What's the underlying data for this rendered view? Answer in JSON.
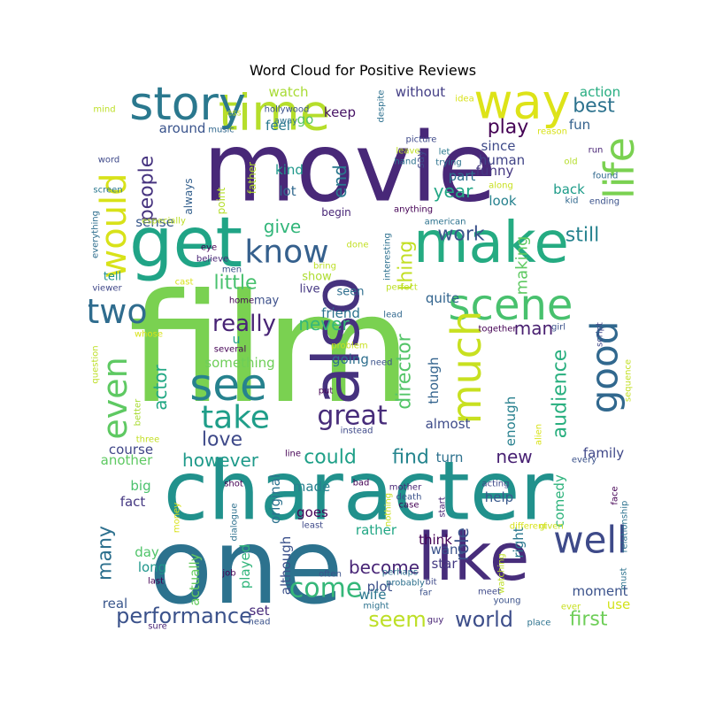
{
  "chart_data": {
    "type": "wordcloud",
    "title": "Word Cloud for Positive Reviews",
    "colormap": "viridis",
    "words": [
      {
        "text": "film",
        "weight": 100,
        "color": "#7ad151"
      },
      {
        "text": "movie",
        "weight": 88,
        "color": "#482878"
      },
      {
        "text": "one",
        "weight": 82,
        "color": "#2c728e"
      },
      {
        "text": "character",
        "weight": 70,
        "color": "#21918c"
      },
      {
        "text": "like",
        "weight": 62,
        "color": "#472d7b"
      },
      {
        "text": "make",
        "weight": 54,
        "color": "#25ab82"
      },
      {
        "text": "get",
        "weight": 50,
        "color": "#20a486"
      },
      {
        "text": "time",
        "weight": 46,
        "color": "#b5de2b"
      },
      {
        "text": "also",
        "weight": 44,
        "color": "#46327e"
      },
      {
        "text": "way",
        "weight": 42,
        "color": "#dde318"
      },
      {
        "text": "story",
        "weight": 40,
        "color": "#2a788e"
      },
      {
        "text": "see",
        "weight": 38,
        "color": "#26828e"
      },
      {
        "text": "scene",
        "weight": 36,
        "color": "#48c16e"
      },
      {
        "text": "much",
        "weight": 34,
        "color": "#c8e020"
      },
      {
        "text": "life",
        "weight": 34,
        "color": "#7ad151"
      },
      {
        "text": "well",
        "weight": 32,
        "color": "#3e4a89"
      },
      {
        "text": "good",
        "weight": 32,
        "color": "#31688e"
      },
      {
        "text": "would",
        "weight": 30,
        "color": "#d8e219"
      },
      {
        "text": "even",
        "weight": 30,
        "color": "#5ec962"
      },
      {
        "text": "two",
        "weight": 29,
        "color": "#2f6c8e"
      },
      {
        "text": "take",
        "weight": 28,
        "color": "#1f9e89"
      },
      {
        "text": "know",
        "weight": 28,
        "color": "#35608d"
      },
      {
        "text": "come",
        "weight": 26,
        "color": "#35b779"
      },
      {
        "text": "great",
        "weight": 22,
        "color": "#472c7a"
      },
      {
        "text": "really",
        "weight": 20,
        "color": "#482475"
      },
      {
        "text": "performance",
        "weight": 20,
        "color": "#3b528b"
      },
      {
        "text": "seem",
        "weight": 19,
        "color": "#bddf26"
      },
      {
        "text": "world",
        "weight": 19,
        "color": "#3d4e8a"
      },
      {
        "text": "play",
        "weight": 18,
        "color": "#440154"
      },
      {
        "text": "best",
        "weight": 18,
        "color": "#2c728e"
      },
      {
        "text": "first",
        "weight": 18,
        "color": "#6ece58"
      },
      {
        "text": "people",
        "weight": 17,
        "color": "#46337f"
      },
      {
        "text": "could",
        "weight": 17,
        "color": "#1fa088"
      },
      {
        "text": "find",
        "weight": 17,
        "color": "#25858e"
      },
      {
        "text": "little",
        "weight": 16,
        "color": "#48c16e"
      },
      {
        "text": "work",
        "weight": 16,
        "color": "#3b528b"
      },
      {
        "text": "love",
        "weight": 16,
        "color": "#3e4989"
      },
      {
        "text": "still",
        "weight": 16,
        "color": "#26828e"
      },
      {
        "text": "however",
        "weight": 15,
        "color": "#1f9a8a"
      },
      {
        "text": "new",
        "weight": 15,
        "color": "#482173"
      },
      {
        "text": "many",
        "weight": 15,
        "color": "#2d708e"
      },
      {
        "text": "audience",
        "weight": 15,
        "color": "#29af7f"
      },
      {
        "text": "director",
        "weight": 14,
        "color": "#54c568"
      },
      {
        "text": "thing",
        "weight": 14,
        "color": "#c2df23"
      },
      {
        "text": "give",
        "weight": 14,
        "color": "#32b67a"
      },
      {
        "text": "year",
        "weight": 14,
        "color": "#22a785"
      },
      {
        "text": "become",
        "weight": 14,
        "color": "#482576"
      },
      {
        "text": "actor",
        "weight": 14,
        "color": "#22a884"
      },
      {
        "text": "end",
        "weight": 13,
        "color": "#2a788e"
      },
      {
        "text": "never",
        "weight": 13,
        "color": "#35b779"
      },
      {
        "text": "man",
        "weight": 13,
        "color": "#481f70"
      },
      {
        "text": "role",
        "weight": 13,
        "color": "#3b528b"
      },
      {
        "text": "making",
        "weight": 12,
        "color": "#5ec962"
      },
      {
        "text": "sense",
        "weight": 11,
        "color": "#38588c"
      },
      {
        "text": "funny",
        "weight": 11,
        "color": "#453781"
      },
      {
        "text": "part",
        "weight": 11,
        "color": "#2d708e"
      },
      {
        "text": "lot",
        "weight": 11,
        "color": "#31688e"
      },
      {
        "text": "look",
        "weight": 11,
        "color": "#26818e"
      },
      {
        "text": "kind",
        "weight": 11,
        "color": "#1f988b"
      },
      {
        "text": "back",
        "weight": 11,
        "color": "#1e9c89"
      },
      {
        "text": "fun",
        "weight": 11,
        "color": "#34618d"
      },
      {
        "text": "action",
        "weight": 11,
        "color": "#27ad81"
      },
      {
        "text": "human",
        "weight": 11,
        "color": "#414487"
      },
      {
        "text": "since",
        "weight": 11,
        "color": "#3e4a89"
      },
      {
        "text": "keep",
        "weight": 11,
        "color": "#471365"
      },
      {
        "text": "go",
        "weight": 11,
        "color": "#56c667"
      },
      {
        "text": "watch",
        "weight": 11,
        "color": "#a8db34"
      },
      {
        "text": "without",
        "weight": 11,
        "color": "#433e85"
      },
      {
        "text": "feel",
        "weight": 11,
        "color": "#29798e"
      },
      {
        "text": "around",
        "weight": 11,
        "color": "#3a548c"
      },
      {
        "text": "something",
        "weight": 11,
        "color": "#6ece58"
      },
      {
        "text": "going",
        "weight": 11,
        "color": "#2e6f8e"
      },
      {
        "text": "friend",
        "weight": 11,
        "color": "#2c738e"
      },
      {
        "text": "quite",
        "weight": 11,
        "color": "#32648e"
      },
      {
        "text": "almost",
        "weight": 11,
        "color": "#3e4c8a"
      },
      {
        "text": "enough",
        "weight": 11,
        "color": "#27808e"
      },
      {
        "text": "though",
        "weight": 11,
        "color": "#33638d"
      },
      {
        "text": "course",
        "weight": 11,
        "color": "#404688"
      },
      {
        "text": "another",
        "weight": 11,
        "color": "#5ec962"
      },
      {
        "text": "fact",
        "weight": 11,
        "color": "#453882"
      },
      {
        "text": "big",
        "weight": 11,
        "color": "#4ac16d"
      },
      {
        "text": "made",
        "weight": 11,
        "color": "#277f8e"
      },
      {
        "text": "goes",
        "weight": 11,
        "color": "#450559"
      },
      {
        "text": "family",
        "weight": 11,
        "color": "#3f4788"
      },
      {
        "text": "turn",
        "weight": 11,
        "color": "#2d718e"
      },
      {
        "text": "help",
        "weight": 11,
        "color": "#38598c"
      },
      {
        "text": "comedy",
        "weight": 11,
        "color": "#2eb37c"
      },
      {
        "text": "rather",
        "weight": 11,
        "color": "#22a785"
      },
      {
        "text": "think",
        "weight": 11,
        "color": "#440154"
      },
      {
        "text": "want",
        "weight": 11,
        "color": "#3a538b"
      },
      {
        "text": "star",
        "weight": 11,
        "color": "#443a83"
      },
      {
        "text": "plot",
        "weight": 11,
        "color": "#3c4f8a"
      },
      {
        "text": "wife",
        "weight": 11,
        "color": "#2a768e"
      },
      {
        "text": "right",
        "weight": 11,
        "color": "#2a778e"
      },
      {
        "text": "moment",
        "weight": 11,
        "color": "#3b528b"
      },
      {
        "text": "use",
        "weight": 11,
        "color": "#d2e21b"
      },
      {
        "text": "day",
        "weight": 11,
        "color": "#50c46a"
      },
      {
        "text": "long",
        "weight": 11,
        "color": "#1f968b"
      },
      {
        "text": "actually",
        "weight": 11,
        "color": "#65cb5e"
      },
      {
        "text": "played",
        "weight": 11,
        "color": "#31b57b"
      },
      {
        "text": "although",
        "weight": 11,
        "color": "#3b518b"
      },
      {
        "text": "original",
        "weight": 11,
        "color": "#2c718e"
      },
      {
        "text": "real",
        "weight": 11,
        "color": "#39568c"
      },
      {
        "text": "set",
        "weight": 11,
        "color": "#472a7a"
      },
      {
        "text": "seen",
        "weight": 10,
        "color": "#2e6e8e"
      },
      {
        "text": "live",
        "weight": 10,
        "color": "#453882"
      },
      {
        "text": "show",
        "weight": 10,
        "color": "#addc30"
      },
      {
        "text": "may",
        "weight": 10,
        "color": "#3c4f8a"
      },
      {
        "text": "u",
        "weight": 10,
        "color": "#1f9f88"
      },
      {
        "text": "tell",
        "weight": 10,
        "color": "#21918c"
      },
      {
        "text": "always",
        "weight": 9,
        "color": "#34608d"
      },
      {
        "text": "point",
        "weight": 9,
        "color": "#b5de2b"
      },
      {
        "text": "father",
        "weight": 9,
        "color": "#b2dd2d"
      },
      {
        "text": "say",
        "weight": 9,
        "color": "#3f4889"
      },
      {
        "text": "begin",
        "weight": 9,
        "color": "#482677"
      },
      {
        "text": "hollywood",
        "weight": 8,
        "color": "#3b528b"
      },
      {
        "text": "away",
        "weight": 8,
        "color": "#2c728e"
      },
      {
        "text": "music",
        "weight": 8,
        "color": "#31688e"
      },
      {
        "text": "less",
        "weight": 8,
        "color": "#c2df23"
      },
      {
        "text": "mind",
        "weight": 8,
        "color": "#bddf26"
      },
      {
        "text": "word",
        "weight": 8,
        "color": "#3e4989"
      },
      {
        "text": "screen",
        "weight": 8,
        "color": "#2a788e"
      },
      {
        "text": "everything",
        "weight": 8,
        "color": "#2e6e8e"
      },
      {
        "text": "especially",
        "weight": 8,
        "color": "#bddf26"
      },
      {
        "text": "eye",
        "weight": 8,
        "color": "#440154"
      },
      {
        "text": "believe",
        "weight": 8,
        "color": "#482475"
      },
      {
        "text": "men",
        "weight": 8,
        "color": "#3b528b"
      },
      {
        "text": "viewer",
        "weight": 8,
        "color": "#3f4788"
      },
      {
        "text": "cast",
        "weight": 8,
        "color": "#d8e219"
      },
      {
        "text": "home",
        "weight": 8,
        "color": "#440154"
      },
      {
        "text": "bring",
        "weight": 8,
        "color": "#bddf26"
      },
      {
        "text": "done",
        "weight": 8,
        "color": "#c2df23"
      },
      {
        "text": "interesting",
        "weight": 8,
        "color": "#2d708e"
      },
      {
        "text": "perfect",
        "weight": 8,
        "color": "#bddf26"
      },
      {
        "text": "idea",
        "weight": 8,
        "color": "#d8e219"
      },
      {
        "text": "despite",
        "weight": 8,
        "color": "#2d708e"
      },
      {
        "text": "picture",
        "weight": 8,
        "color": "#3e4989"
      },
      {
        "text": "reason",
        "weight": 8,
        "color": "#d8e219"
      },
      {
        "text": "leave",
        "weight": 8,
        "color": "#bddf26"
      },
      {
        "text": "hand",
        "weight": 8,
        "color": "#2c728e"
      },
      {
        "text": "let",
        "weight": 8,
        "color": "#2a788e"
      },
      {
        "text": "trying",
        "weight": 8,
        "color": "#2c728e"
      },
      {
        "text": "run",
        "weight": 8,
        "color": "#482475"
      },
      {
        "text": "old",
        "weight": 8,
        "color": "#b5de2b"
      },
      {
        "text": "found",
        "weight": 8,
        "color": "#31688e"
      },
      {
        "text": "along",
        "weight": 8,
        "color": "#c8e020"
      },
      {
        "text": "kid",
        "weight": 8,
        "color": "#31688e"
      },
      {
        "text": "ending",
        "weight": 8,
        "color": "#3b528b"
      },
      {
        "text": "anything",
        "weight": 8,
        "color": "#440154"
      },
      {
        "text": "american",
        "weight": 8,
        "color": "#2c728e"
      },
      {
        "text": "lead",
        "weight": 8,
        "color": "#31688e"
      },
      {
        "text": "whose",
        "weight": 8,
        "color": "#d8e219"
      },
      {
        "text": "question",
        "weight": 8,
        "color": "#bddf26"
      },
      {
        "text": "better",
        "weight": 8,
        "color": "#a8db34"
      },
      {
        "text": "three",
        "weight": 8,
        "color": "#c2df23"
      },
      {
        "text": "several",
        "weight": 8,
        "color": "#440154"
      },
      {
        "text": "problem",
        "weight": 8,
        "color": "#c8e020"
      },
      {
        "text": "need",
        "weight": 8,
        "color": "#3b528b"
      },
      {
        "text": "put",
        "weight": 8,
        "color": "#440154"
      },
      {
        "text": "instead",
        "weight": 8,
        "color": "#3e4989"
      },
      {
        "text": "together",
        "weight": 8,
        "color": "#440154"
      },
      {
        "text": "girl",
        "weight": 8,
        "color": "#3b528b"
      },
      {
        "text": "script",
        "weight": 8,
        "color": "#3f4788"
      },
      {
        "text": "sequence",
        "weight": 8,
        "color": "#c2df23"
      },
      {
        "text": "alien",
        "weight": 8,
        "color": "#d8e219"
      },
      {
        "text": "line",
        "weight": 8,
        "color": "#440154"
      },
      {
        "text": "every",
        "weight": 8,
        "color": "#3b528b"
      },
      {
        "text": "shot",
        "weight": 8,
        "color": "#440154"
      },
      {
        "text": "money",
        "weight": 8,
        "color": "#d8e219"
      },
      {
        "text": "dialogue",
        "weight": 8,
        "color": "#2d708e"
      },
      {
        "text": "least",
        "weight": 8,
        "color": "#3e4989"
      },
      {
        "text": "bad",
        "weight": 8,
        "color": "#440154"
      },
      {
        "text": "nothing",
        "weight": 8,
        "color": "#c8e020"
      },
      {
        "text": "mother",
        "weight": 8,
        "color": "#482475"
      },
      {
        "text": "death",
        "weight": 8,
        "color": "#3b528b"
      },
      {
        "text": "case",
        "weight": 8,
        "color": "#440154"
      },
      {
        "text": "start",
        "weight": 8,
        "color": "#482475"
      },
      {
        "text": "acting",
        "weight": 8,
        "color": "#3e4989"
      },
      {
        "text": "given",
        "weight": 8,
        "color": "#c8e020"
      },
      {
        "text": "face",
        "weight": 8,
        "color": "#440154"
      },
      {
        "text": "relationship",
        "weight": 8,
        "color": "#2c728e"
      },
      {
        "text": "job",
        "weight": 8,
        "color": "#440154"
      },
      {
        "text": "often",
        "weight": 8,
        "color": "#3b528b"
      },
      {
        "text": "perhaps",
        "weight": 8,
        "color": "#2d708e"
      },
      {
        "text": "probably",
        "weight": 8,
        "color": "#2d708e"
      },
      {
        "text": "different",
        "weight": 8,
        "color": "#d8e219"
      },
      {
        "text": "watching",
        "weight": 8,
        "color": "#bddf26"
      },
      {
        "text": "young",
        "weight": 8,
        "color": "#3b528b"
      },
      {
        "text": "bit",
        "weight": 8,
        "color": "#3e4989"
      },
      {
        "text": "must",
        "weight": 8,
        "color": "#2c728e"
      },
      {
        "text": "ever",
        "weight": 8,
        "color": "#c8e020"
      },
      {
        "text": "last",
        "weight": 8,
        "color": "#440154"
      },
      {
        "text": "might",
        "weight": 8,
        "color": "#2c728e"
      },
      {
        "text": "far",
        "weight": 8,
        "color": "#3b528b"
      },
      {
        "text": "meet",
        "weight": 8,
        "color": "#3e4989"
      },
      {
        "text": "sure",
        "weight": 8,
        "color": "#482475"
      },
      {
        "text": "head",
        "weight": 8,
        "color": "#3b528b"
      },
      {
        "text": "guy",
        "weight": 8,
        "color": "#482475"
      },
      {
        "text": "place",
        "weight": 8,
        "color": "#2c728e"
      }
    ]
  }
}
